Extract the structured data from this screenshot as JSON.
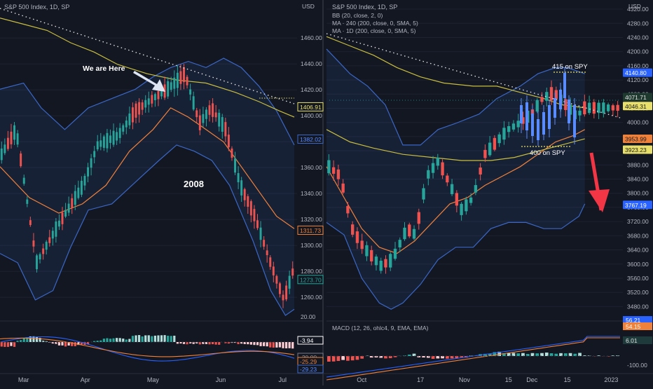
{
  "chart_data": [
    {
      "type": "candlestick",
      "symbol_title": "S&P 500 Index, 1D, SP",
      "currency": "USD",
      "annotation_label": "We are Here",
      "period_label": "2008",
      "y_ticks": [
        1260,
        1280,
        1300,
        1320,
        1340,
        1360,
        1380,
        1400,
        1420,
        1440,
        1460
      ],
      "ylim": [
        1246,
        1485
      ],
      "x_ticks": [
        "Mar",
        "Apr",
        "May",
        "Jun",
        "Jul"
      ],
      "price_badges": [
        {
          "value": "1406.91",
          "color": "#e8e06a",
          "bg": "#131722",
          "fg": "#e8e06a",
          "price": 1406.91
        },
        {
          "value": "1382.02",
          "color": "#3a67c6",
          "bg": "#131722",
          "fg": "#5b8cff",
          "price": 1382.02
        },
        {
          "value": "1311.73",
          "color": "#f0813a",
          "bg": "#131722",
          "fg": "#f0813a",
          "price": 1311.73
        },
        {
          "value": "1273.70",
          "color": "#26a69a",
          "bg": "#131722",
          "fg": "#26a69a",
          "price": 1273.7
        }
      ],
      "start_price": 1380,
      "bb_width_start": 18,
      "macd_label_top": "20.00",
      "macd_badges": [
        {
          "value": "-3.94",
          "color": "#ffffff",
          "fg": "#ffffff"
        },
        {
          "value": "-20.00",
          "color": "#787b86",
          "fg": "#9598a1"
        },
        {
          "value": "-25.29",
          "color": "#f0813a",
          "fg": "#f0813a"
        },
        {
          "value": "-29.23",
          "color": "#3a67c6",
          "fg": "#5b8cff"
        }
      ]
    },
    {
      "type": "candlestick",
      "symbol_title": "S&P 500 Index, 1D, SP",
      "currency": "USD",
      "legend": [
        "BB (20, close, 2, 0)",
        "MA · 240 (200, close, 0, SMA, 5)",
        "MA · 1D (200, close, 0, SMA, 5)"
      ],
      "annotations": [
        "415 on SPY",
        "400 on SPY"
      ],
      "y_ticks": [
        3480,
        3520,
        3560,
        3600,
        3640,
        3680,
        3720,
        3760,
        3800,
        3840,
        3880,
        3920,
        3960,
        4000,
        4040,
        4080,
        4120,
        4160,
        4200,
        4240,
        4280,
        4320
      ],
      "ylim": [
        3455,
        4330
      ],
      "x_ticks": [
        "Oct",
        "17",
        "Nov",
        "15",
        "Dec",
        "15",
        "2023"
      ],
      "price_badges": [
        {
          "value": "4140.80",
          "bg": "#2962ff",
          "fg": "#ffffff",
          "price": 4140.8
        },
        {
          "value": "4071.71",
          "bg": "#1e3a2f",
          "fg": "#e0e0e0",
          "price": 4071.71
        },
        {
          "value": "4046.31",
          "bg": "#e8e06a",
          "fg": "#131722",
          "price": 4046.31
        },
        {
          "value": "3953.99",
          "bg": "#f0813a",
          "fg": "#131722",
          "price": 3953.99
        },
        {
          "value": "3923.23",
          "bg": "#e8e06a",
          "fg": "#131722",
          "price": 3923.23
        },
        {
          "value": "3767.19",
          "bg": "#2962ff",
          "fg": "#ffffff",
          "price": 3767.19
        }
      ],
      "start_price": 4080,
      "bb_width_start": 100,
      "macd_title": "MACD (12, 26, ohlc4, 9, EMA, EMA)",
      "macd_ticks": [
        "-100.00"
      ],
      "macd_badges": [
        {
          "value": "56.21",
          "bg": "#2962ff",
          "fg": "#ffffff"
        },
        {
          "value": "54.15",
          "bg": "#f0813a",
          "fg": "#ffffff"
        },
        {
          "value": "6.01",
          "bg": "#1f3a3a",
          "fg": "#e0e0e0"
        }
      ]
    }
  ],
  "colors": {
    "background": "#131722",
    "bull": "#26a69a",
    "bear": "#ef5350",
    "bb": "#3a67c6",
    "ma_short": "#f0813a",
    "ma_long": "#c8bd3f",
    "projection": "#5b8cff",
    "arrow": "#f23645",
    "grid": "#1e2230",
    "text": "#b2b5be"
  }
}
